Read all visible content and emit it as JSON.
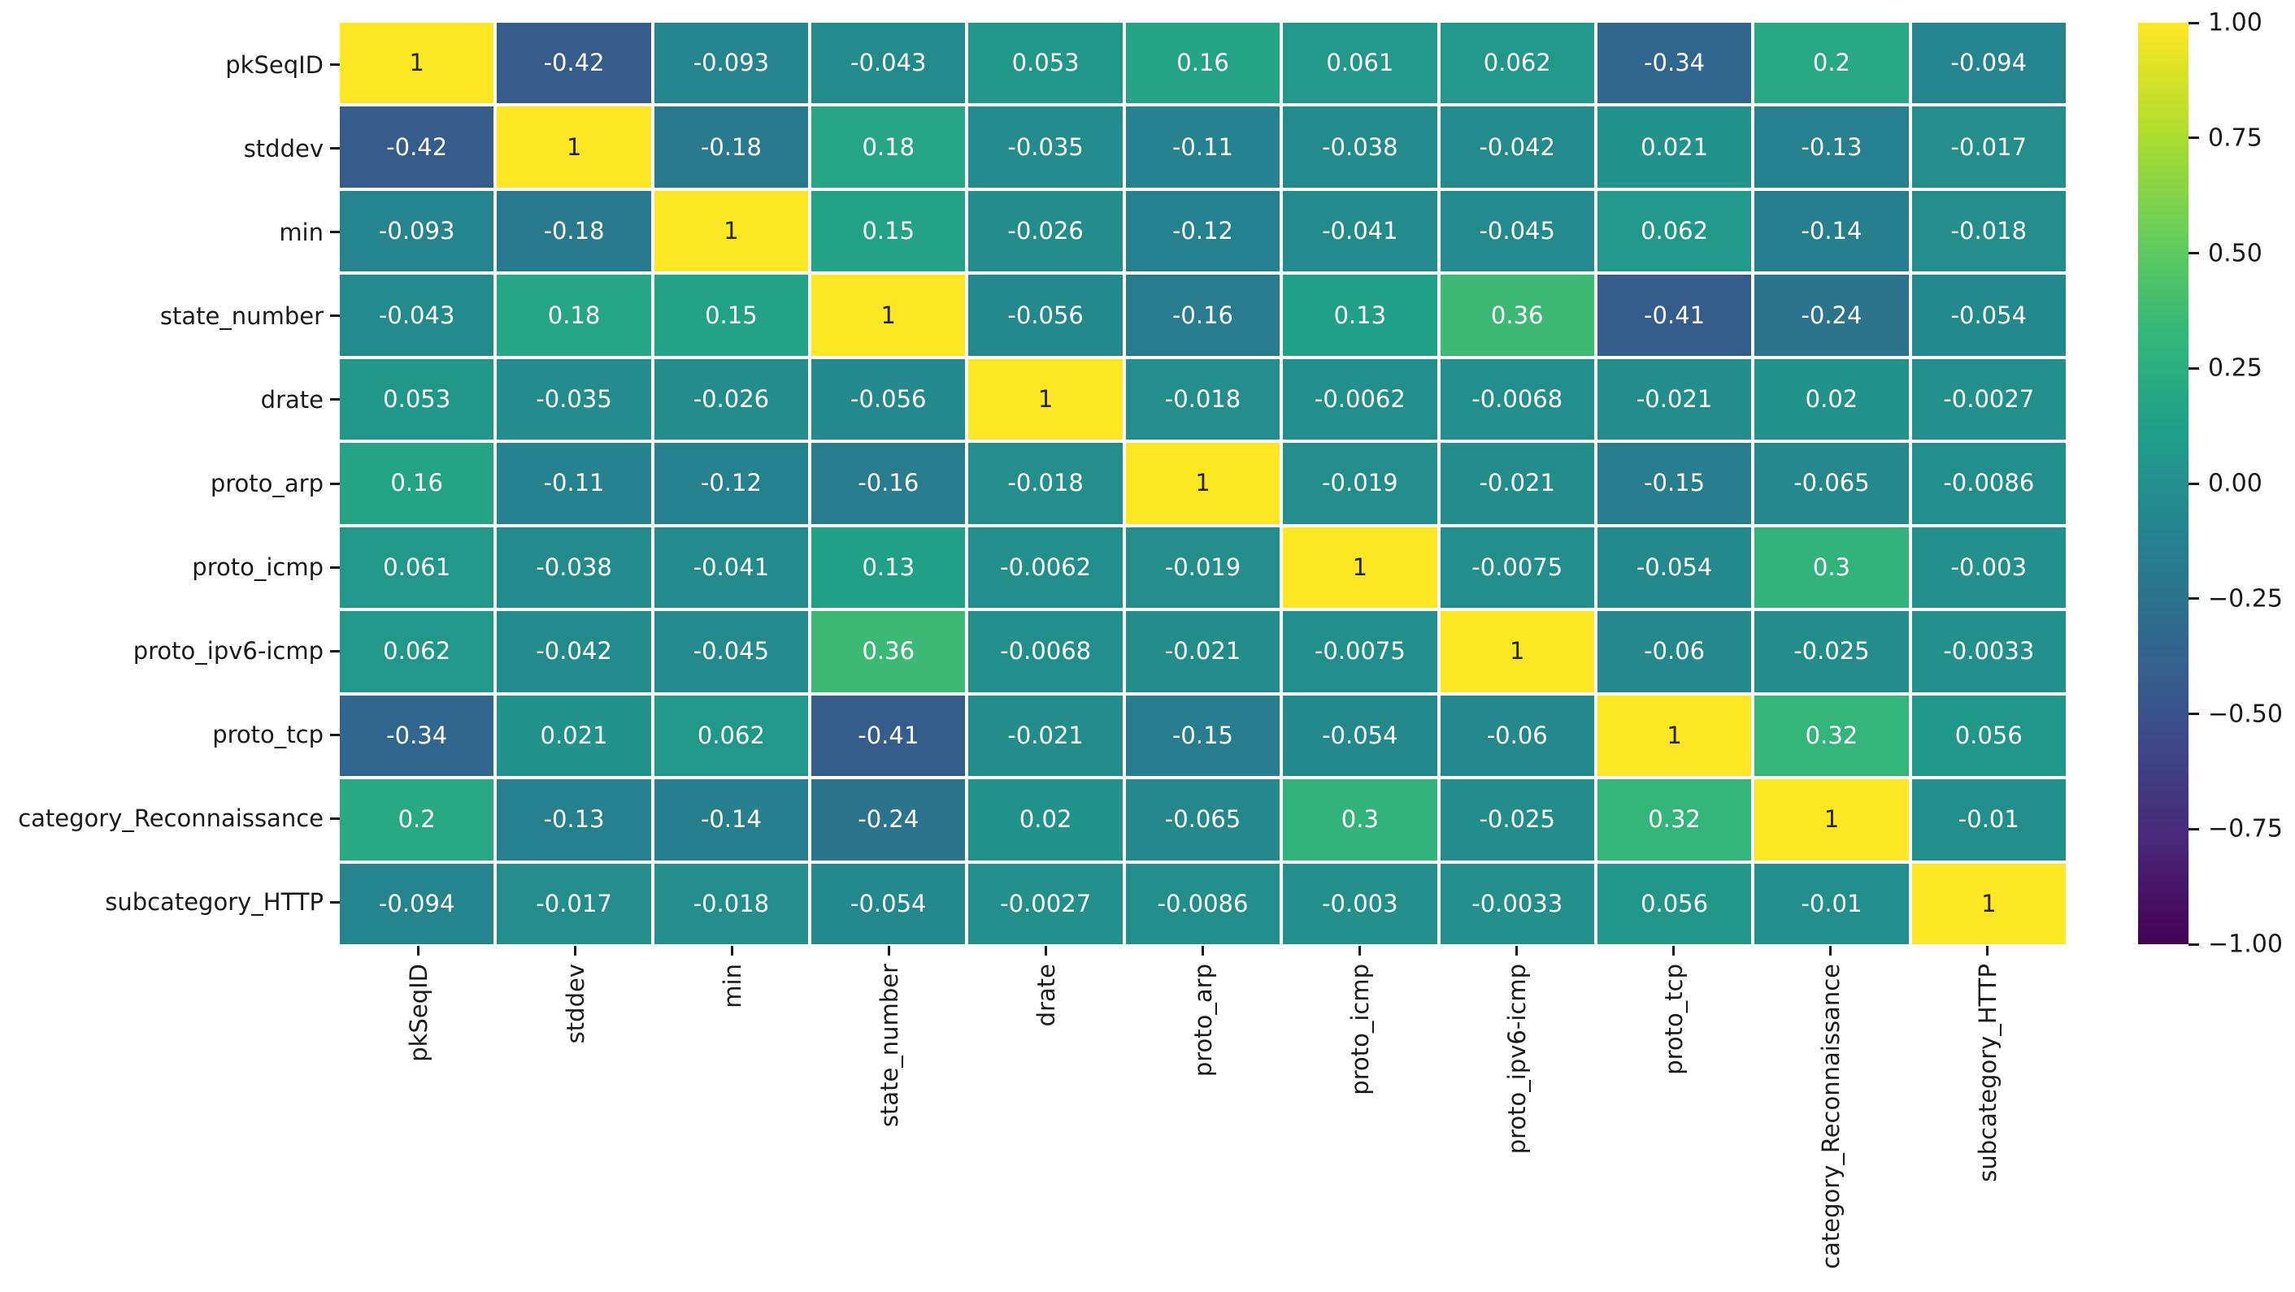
{
  "chart_data": {
    "type": "heatmap",
    "title": "",
    "xlabel": "",
    "ylabel": "",
    "labels": [
      "pkSeqID",
      "stddev",
      "min",
      "state_number",
      "drate",
      "proto_arp",
      "proto_icmp",
      "proto_ipv6-icmp",
      "proto_tcp",
      "category_Reconnaissance",
      "subcategory_HTTP"
    ],
    "matrix": [
      [
        1,
        -0.42,
        -0.093,
        -0.043,
        0.053,
        0.16,
        0.061,
        0.062,
        -0.34,
        0.2,
        -0.094
      ],
      [
        -0.42,
        1,
        -0.18,
        0.18,
        -0.035,
        -0.11,
        -0.038,
        -0.042,
        0.021,
        -0.13,
        -0.017
      ],
      [
        -0.093,
        -0.18,
        1,
        0.15,
        -0.026,
        -0.12,
        -0.041,
        -0.045,
        0.062,
        -0.14,
        -0.018
      ],
      [
        -0.043,
        0.18,
        0.15,
        1,
        -0.056,
        -0.16,
        0.13,
        0.36,
        -0.41,
        -0.24,
        -0.054
      ],
      [
        0.053,
        -0.035,
        -0.026,
        -0.056,
        1,
        -0.018,
        -0.0062,
        -0.0068,
        -0.021,
        0.02,
        -0.0027
      ],
      [
        0.16,
        -0.11,
        -0.12,
        -0.16,
        -0.018,
        1,
        -0.019,
        -0.021,
        -0.15,
        -0.065,
        -0.0086
      ],
      [
        0.061,
        -0.038,
        -0.041,
        0.13,
        -0.0062,
        -0.019,
        1,
        -0.0075,
        -0.054,
        0.3,
        -0.003
      ],
      [
        0.062,
        -0.042,
        -0.045,
        0.36,
        -0.0068,
        -0.021,
        -0.0075,
        1,
        -0.06,
        -0.025,
        -0.0033
      ],
      [
        -0.34,
        0.021,
        0.062,
        -0.41,
        -0.021,
        -0.15,
        -0.054,
        -0.06,
        1,
        0.32,
        0.056
      ],
      [
        0.2,
        -0.13,
        -0.14,
        -0.24,
        0.02,
        -0.065,
        0.3,
        -0.025,
        0.32,
        1,
        -0.01
      ],
      [
        -0.094,
        -0.017,
        -0.018,
        -0.054,
        -0.0027,
        -0.0086,
        -0.003,
        -0.0033,
        0.056,
        -0.01,
        1
      ]
    ],
    "vmin": -1,
    "vmax": 1,
    "colormap": "viridis",
    "colormap_stops": [
      "#440154",
      "#482878",
      "#3e4989",
      "#31688e",
      "#26828e",
      "#1f9e89",
      "#35b779",
      "#6ece58",
      "#b5de2b",
      "#fde725"
    ],
    "annotation_text_light": "#ffffff",
    "annotation_text_dark": "#262626",
    "tick_color": "#1a1a1a",
    "gridline_color": "#ffffff",
    "colorbar_ticks": [
      "1.00",
      "0.75",
      "0.50",
      "0.25",
      "0.00",
      "−0.25",
      "−0.50",
      "−0.75",
      "−1.00"
    ],
    "colorbar_tick_values": [
      1.0,
      0.75,
      0.5,
      0.25,
      0.0,
      -0.25,
      -0.5,
      -0.75,
      -1.0
    ],
    "legend_position": "right",
    "grid": false
  }
}
